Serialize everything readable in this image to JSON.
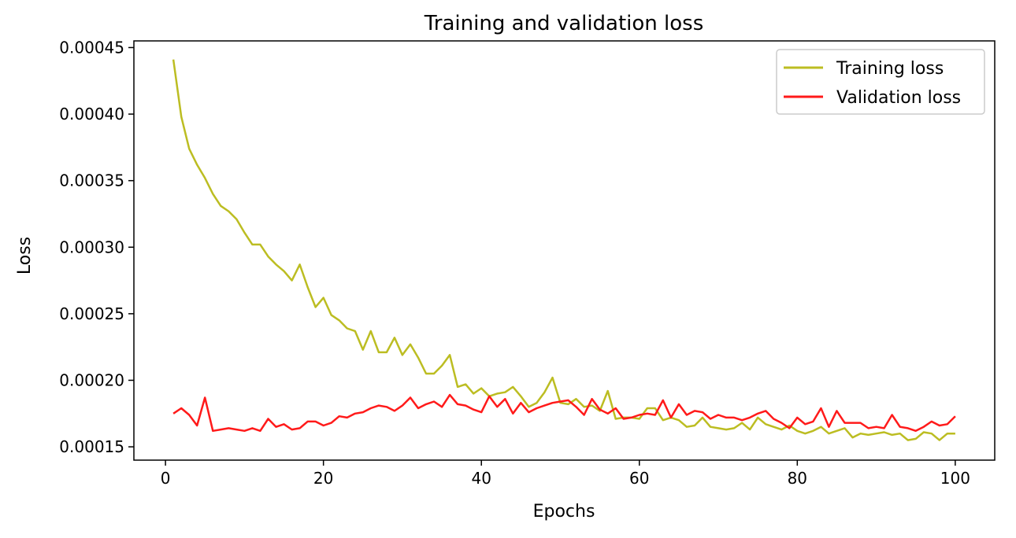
{
  "colors": {
    "training": "#bcbd22",
    "validation": "#ff1a1a",
    "axes": "#000000",
    "legend_border": "#cccccc"
  },
  "chart_data": {
    "type": "line",
    "title": "Training and validation loss",
    "xlabel": "Epochs",
    "ylabel": "Loss",
    "xlim": [
      -4,
      105
    ],
    "ylim": [
      0.00014,
      0.000455
    ],
    "x_ticks": [
      0,
      20,
      40,
      60,
      80,
      100
    ],
    "x_tick_labels": [
      "0",
      "20",
      "40",
      "60",
      "80",
      "100"
    ],
    "y_ticks": [
      0.00015,
      0.0002,
      0.00025,
      0.0003,
      0.00035,
      0.0004,
      0.00045
    ],
    "y_tick_labels": [
      "0.00015",
      "0.00020",
      "0.00025",
      "0.00030",
      "0.00035",
      "0.00040",
      "0.00045"
    ],
    "grid": false,
    "legend_position": "top-right",
    "x": [
      1,
      2,
      3,
      4,
      5,
      6,
      7,
      8,
      9,
      10,
      11,
      12,
      13,
      14,
      15,
      16,
      17,
      18,
      19,
      20,
      21,
      22,
      23,
      24,
      25,
      26,
      27,
      28,
      29,
      30,
      31,
      32,
      33,
      34,
      35,
      36,
      37,
      38,
      39,
      40,
      41,
      42,
      43,
      44,
      45,
      46,
      47,
      48,
      49,
      50,
      51,
      52,
      53,
      54,
      55,
      56,
      57,
      58,
      59,
      60,
      61,
      62,
      63,
      64,
      65,
      66,
      67,
      68,
      69,
      70,
      71,
      72,
      73,
      74,
      75,
      76,
      77,
      78,
      79,
      80,
      81,
      82,
      83,
      84,
      85,
      86,
      87,
      88,
      89,
      90,
      91,
      92,
      93,
      94,
      95,
      96,
      97,
      98,
      99,
      100
    ],
    "series": [
      {
        "name": "Training loss",
        "values": [
          0.000441,
          0.000398,
          0.000374,
          0.000362,
          0.000352,
          0.00034,
          0.000331,
          0.000327,
          0.000321,
          0.000311,
          0.000302,
          0.000302,
          0.000293,
          0.000287,
          0.000282,
          0.000275,
          0.000287,
          0.00027,
          0.000255,
          0.000262,
          0.000249,
          0.000245,
          0.000239,
          0.000237,
          0.000223,
          0.000237,
          0.000221,
          0.000221,
          0.000232,
          0.000219,
          0.000227,
          0.000217,
          0.000205,
          0.000205,
          0.000211,
          0.000219,
          0.000195,
          0.000197,
          0.00019,
          0.000194,
          0.000188,
          0.00019,
          0.000191,
          0.000195,
          0.000188,
          0.00018,
          0.000183,
          0.000191,
          0.000202,
          0.000183,
          0.000182,
          0.000186,
          0.00018,
          0.000181,
          0.000177,
          0.000192,
          0.000171,
          0.000172,
          0.000172,
          0.000171,
          0.000179,
          0.000179,
          0.00017,
          0.000172,
          0.00017,
          0.000165,
          0.000166,
          0.000172,
          0.000165,
          0.000164,
          0.000163,
          0.000164,
          0.000168,
          0.000163,
          0.000172,
          0.000167,
          0.000165,
          0.000163,
          0.000166,
          0.000162,
          0.00016,
          0.000162,
          0.000165,
          0.00016,
          0.000162,
          0.000164,
          0.000157,
          0.00016,
          0.000159,
          0.00016,
          0.000161,
          0.000159,
          0.00016,
          0.000155,
          0.000156,
          0.000161,
          0.00016,
          0.000155,
          0.00016,
          0.00016
        ]
      },
      {
        "name": "Validation loss",
        "values": [
          0.000175,
          0.000179,
          0.000174,
          0.000166,
          0.000187,
          0.000162,
          0.000163,
          0.000164,
          0.000163,
          0.000162,
          0.000164,
          0.000162,
          0.000171,
          0.000165,
          0.000167,
          0.000163,
          0.000164,
          0.000169,
          0.000169,
          0.000166,
          0.000168,
          0.000173,
          0.000172,
          0.000175,
          0.000176,
          0.000179,
          0.000181,
          0.00018,
          0.000177,
          0.000181,
          0.000187,
          0.000179,
          0.000182,
          0.000184,
          0.00018,
          0.000189,
          0.000182,
          0.000181,
          0.000178,
          0.000176,
          0.000188,
          0.00018,
          0.000186,
          0.000175,
          0.000183,
          0.000176,
          0.000179,
          0.000181,
          0.000183,
          0.000184,
          0.000185,
          0.00018,
          0.000174,
          0.000186,
          0.000178,
          0.000175,
          0.000179,
          0.000171,
          0.000172,
          0.000174,
          0.000175,
          0.000174,
          0.000185,
          0.000172,
          0.000182,
          0.000174,
          0.000177,
          0.000176,
          0.000171,
          0.000174,
          0.000172,
          0.000172,
          0.00017,
          0.000172,
          0.000175,
          0.000177,
          0.000171,
          0.000168,
          0.000164,
          0.000172,
          0.000167,
          0.000169,
          0.000179,
          0.000165,
          0.000177,
          0.000168,
          0.000168,
          0.000168,
          0.000164,
          0.000165,
          0.000164,
          0.000174,
          0.000165,
          0.000164,
          0.000162,
          0.000165,
          0.000169,
          0.000166,
          0.000167,
          0.000173
        ]
      }
    ]
  }
}
